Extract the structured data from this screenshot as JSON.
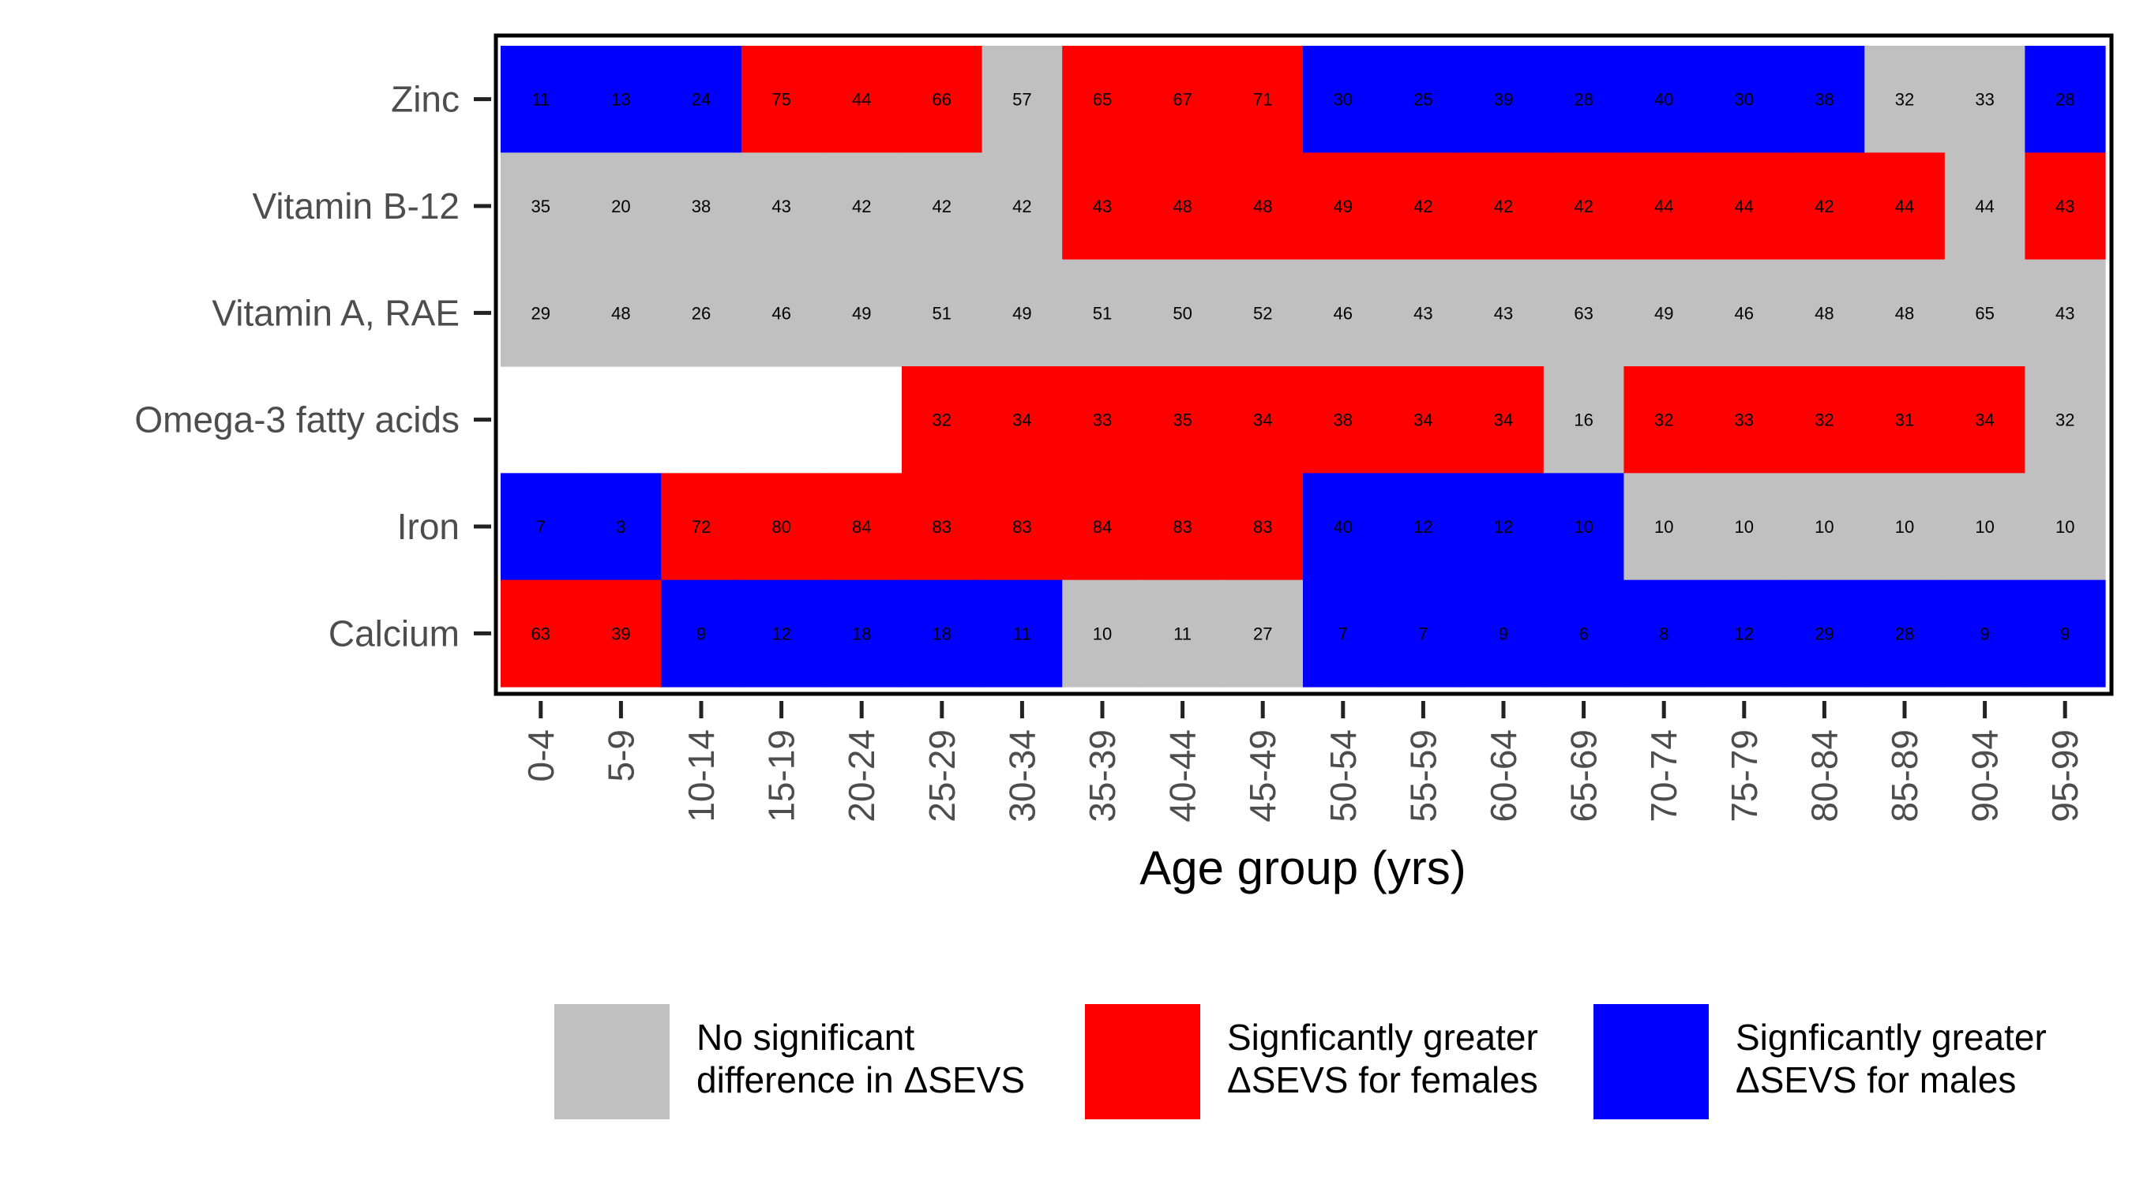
{
  "chart_data": {
    "type": "heatmap",
    "title": "",
    "xlabel": "Age group (yrs)",
    "ylabel": "",
    "categories": [
      "0-4",
      "5-9",
      "10-14",
      "15-19",
      "20-24",
      "25-29",
      "30-34",
      "35-39",
      "40-44",
      "45-49",
      "50-54",
      "55-59",
      "60-64",
      "65-69",
      "70-74",
      "75-79",
      "80-84",
      "85-89",
      "90-94",
      "95-99"
    ],
    "rows": [
      "Zinc",
      "Vitamin B-12",
      "Vitamin A, RAE",
      "Omega-3 fatty acids",
      "Iron",
      "Calcium"
    ],
    "values": [
      [
        11,
        13,
        24,
        75,
        44,
        66,
        57,
        65,
        67,
        71,
        30,
        25,
        39,
        28,
        40,
        30,
        38,
        32,
        33,
        28
      ],
      [
        35,
        20,
        38,
        43,
        42,
        42,
        42,
        43,
        48,
        48,
        49,
        42,
        42,
        42,
        44,
        44,
        42,
        44,
        44,
        43
      ],
      [
        29,
        48,
        26,
        46,
        49,
        51,
        49,
        51,
        50,
        52,
        46,
        43,
        43,
        63,
        49,
        46,
        48,
        48,
        65,
        43
      ],
      [
        null,
        null,
        null,
        null,
        null,
        32,
        34,
        33,
        35,
        34,
        38,
        34,
        34,
        16,
        32,
        33,
        32,
        31,
        34,
        32
      ],
      [
        7,
        3,
        72,
        80,
        84,
        83,
        83,
        84,
        83,
        83,
        40,
        12,
        12,
        10,
        10,
        10,
        10,
        10,
        10,
        10
      ],
      [
        63,
        39,
        9,
        12,
        18,
        18,
        11,
        10,
        11,
        27,
        7,
        7,
        9,
        6,
        8,
        12,
        29,
        28,
        9,
        9
      ]
    ],
    "significance": [
      [
        "M",
        "M",
        "M",
        "F",
        "F",
        "F",
        "N",
        "F",
        "F",
        "F",
        "M",
        "M",
        "M",
        "M",
        "M",
        "M",
        "M",
        "N",
        "N",
        "M"
      ],
      [
        "N",
        "N",
        "N",
        "N",
        "N",
        "N",
        "N",
        "F",
        "F",
        "F",
        "F",
        "F",
        "F",
        "F",
        "F",
        "F",
        "F",
        "F",
        "N",
        "F"
      ],
      [
        "N",
        "N",
        "N",
        "N",
        "N",
        "N",
        "N",
        "N",
        "N",
        "N",
        "N",
        "N",
        "N",
        "N",
        "N",
        "N",
        "N",
        "N",
        "N",
        "N"
      ],
      [
        null,
        null,
        null,
        null,
        null,
        "F",
        "F",
        "F",
        "F",
        "F",
        "F",
        "F",
        "F",
        "N",
        "F",
        "F",
        "F",
        "F",
        "F",
        "N"
      ],
      [
        "M",
        "M",
        "F",
        "F",
        "F",
        "F",
        "F",
        "F",
        "F",
        "F",
        "M",
        "M",
        "M",
        "M",
        "N",
        "N",
        "N",
        "N",
        "N",
        "N"
      ],
      [
        "F",
        "F",
        "M",
        "M",
        "M",
        "M",
        "M",
        "N",
        "N",
        "N",
        "M",
        "M",
        "M",
        "M",
        "M",
        "M",
        "M",
        "M",
        "M",
        "M"
      ]
    ],
    "colors": {
      "N": "#c0c0c0",
      "F": "#ff0000",
      "M": "#0000ff"
    },
    "grid": false,
    "legend": {
      "position": "bottom",
      "entries": [
        {
          "key": "N",
          "lines": [
            "No significant",
            "difference in ΔSEVS"
          ]
        },
        {
          "key": "F",
          "lines": [
            "Signficantly greater",
            "ΔSEVS for females"
          ]
        },
        {
          "key": "M",
          "lines": [
            "Signficantly greater",
            "ΔSEVS for males"
          ]
        }
      ]
    }
  }
}
